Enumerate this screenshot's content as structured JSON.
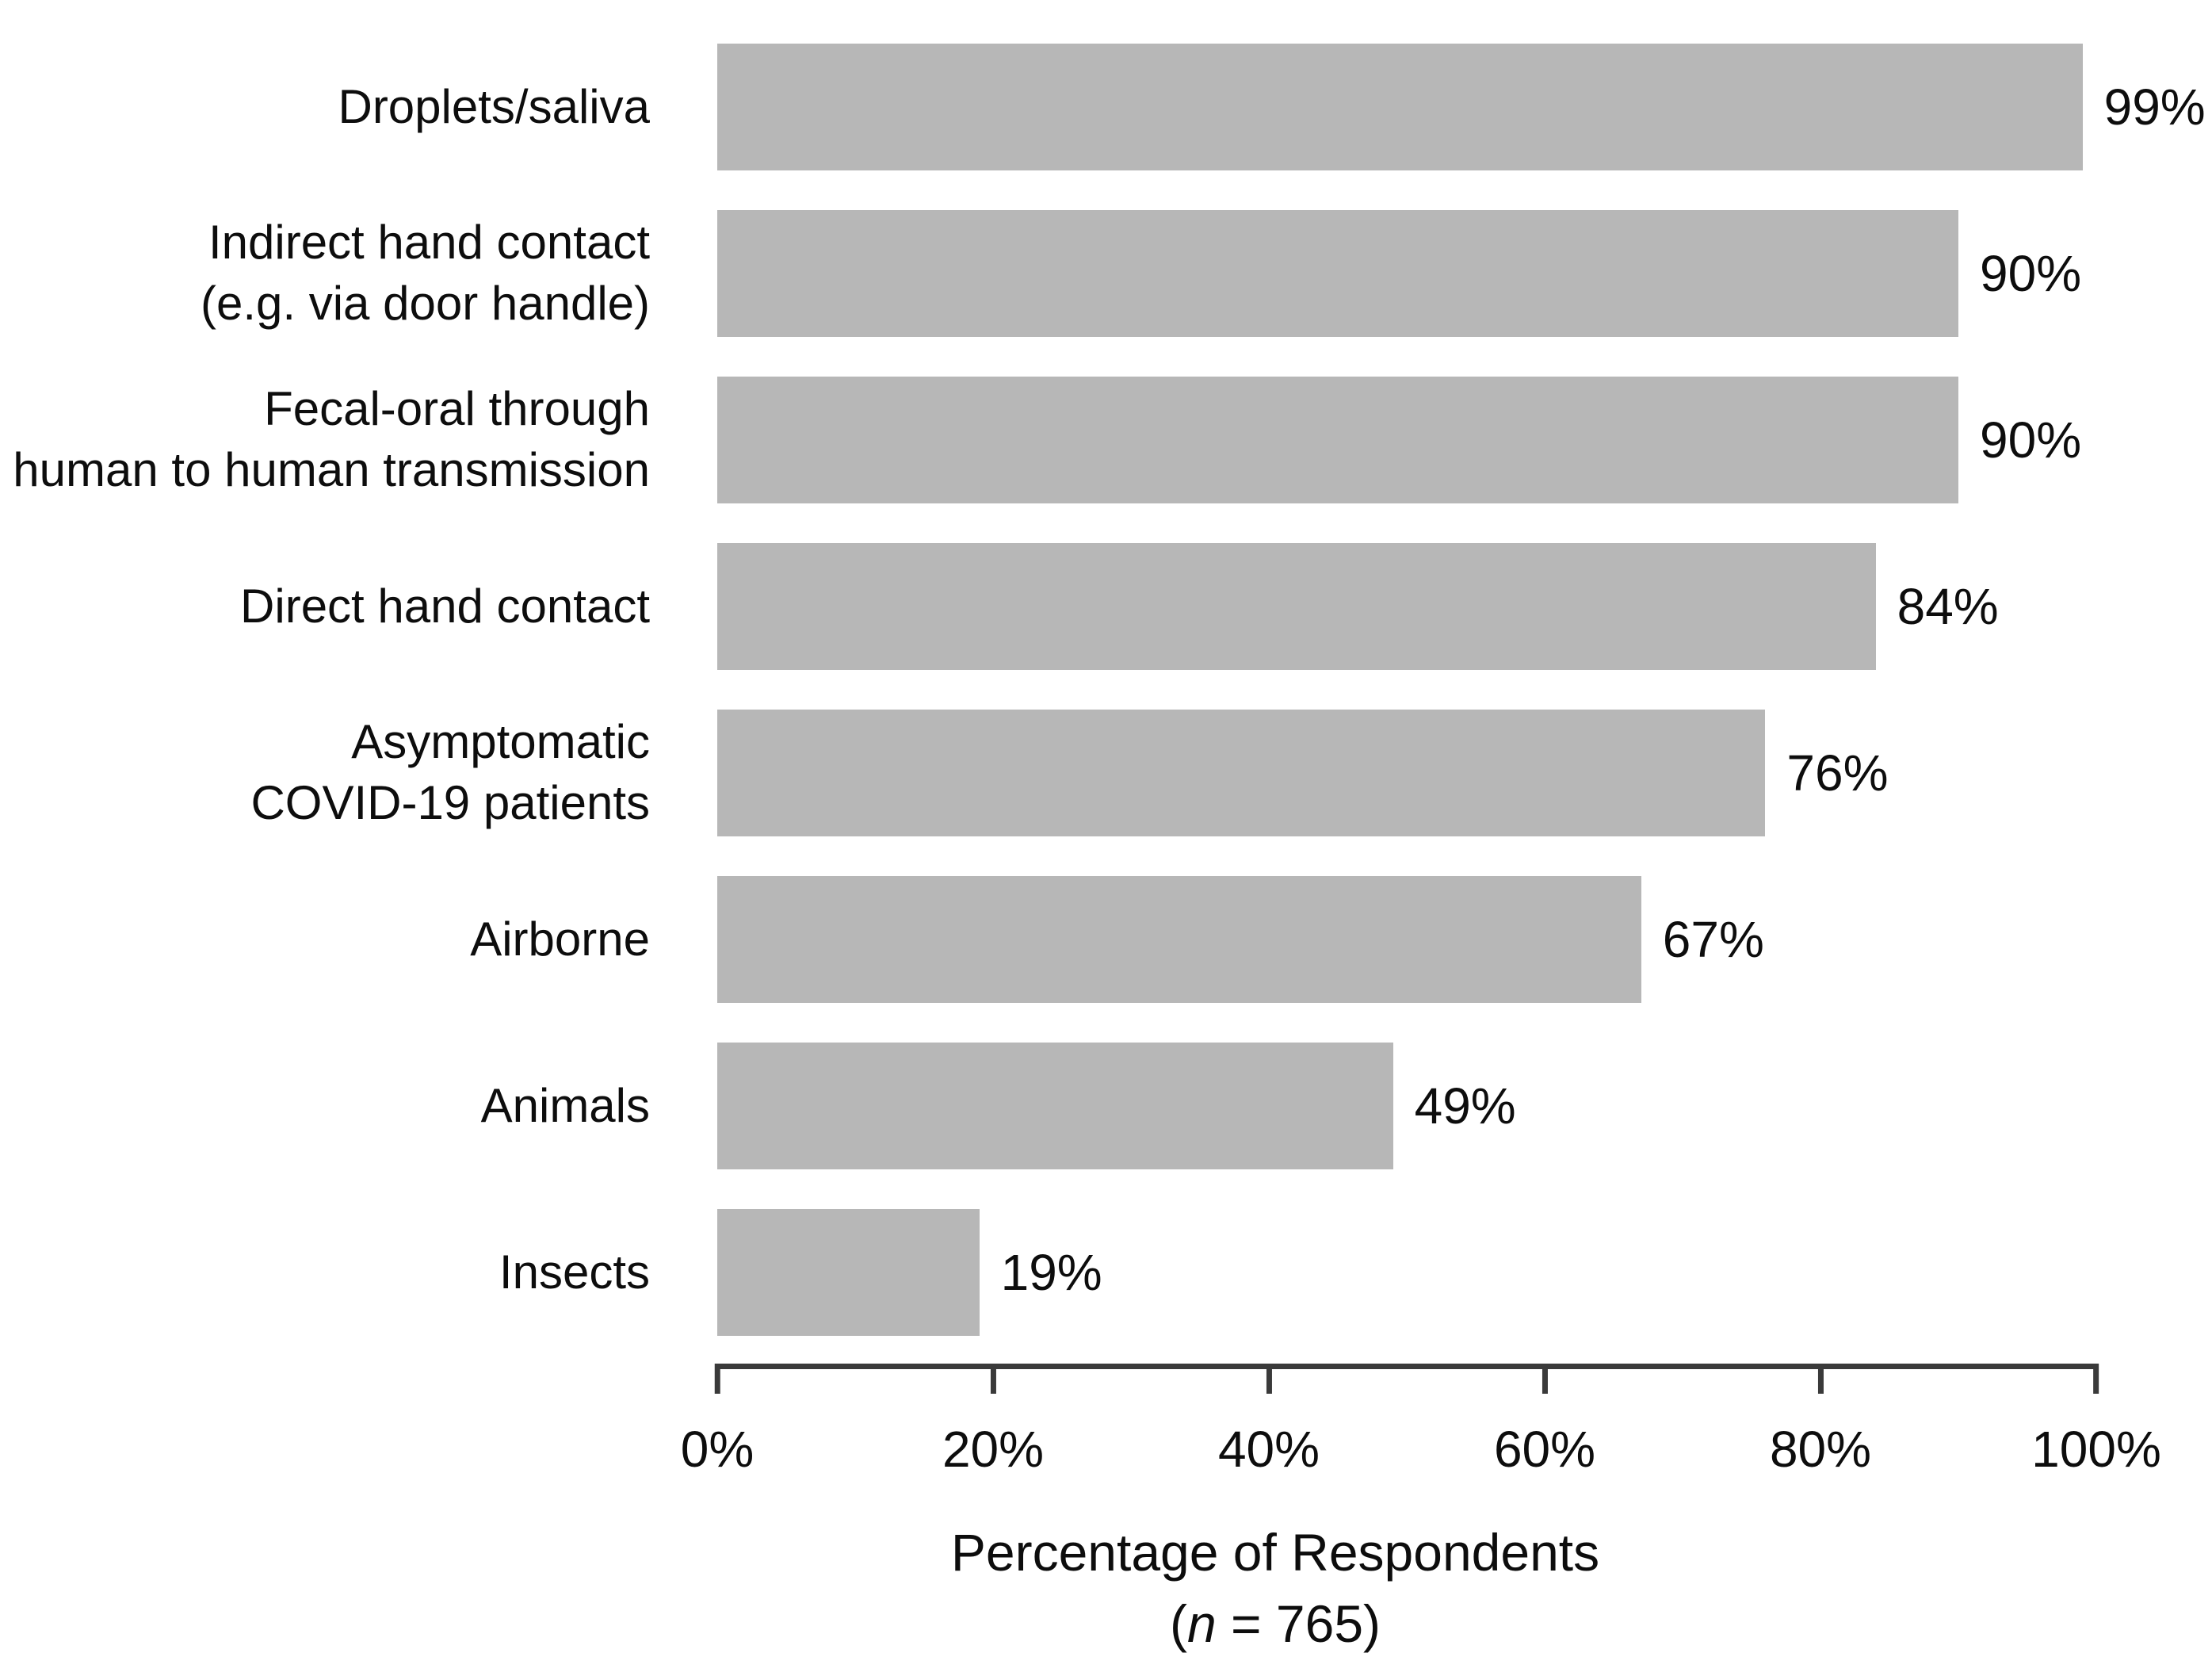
{
  "chart_data": {
    "type": "bar",
    "orientation": "horizontal",
    "title": "",
    "categories": [
      "Droplets/saliva",
      "Indirect hand contact (e.g. via door handle)",
      "Fecal-oral through human to human transmission",
      "Direct hand contact",
      "Asymptomatic COVID-19 patients",
      "Airborne",
      "Animals",
      "Insects"
    ],
    "category_lines": [
      [
        "Droplets/saliva"
      ],
      [
        "Indirect hand contact",
        "(e.g. via door handle)"
      ],
      [
        "Fecal-oral through",
        "human to human transmission"
      ],
      [
        "Direct hand contact"
      ],
      [
        "Asymptomatic",
        "COVID-19 patients"
      ],
      [
        "Airborne"
      ],
      [
        "Animals"
      ],
      [
        "Insects"
      ]
    ],
    "values": [
      99,
      90,
      90,
      84,
      76,
      67,
      49,
      19
    ],
    "value_labels": [
      "99%",
      "90%",
      "90%",
      "84%",
      "76%",
      "67%",
      "49%",
      "19%"
    ],
    "xlabel": "Percentage of Respondents",
    "note": {
      "open": "(",
      "n": "n",
      "rest": " = 765)"
    },
    "xticks": [
      "0%",
      "20%",
      "40%",
      "60%",
      "80%",
      "100%"
    ],
    "xtick_values": [
      0,
      20,
      40,
      60,
      80,
      100
    ],
    "xlim": [
      0,
      100
    ],
    "grid": false,
    "legend": false,
    "bar_color": "#b7b7b7",
    "axis_color": "#3a3a3a",
    "text_color": "#0d0d0d"
  }
}
